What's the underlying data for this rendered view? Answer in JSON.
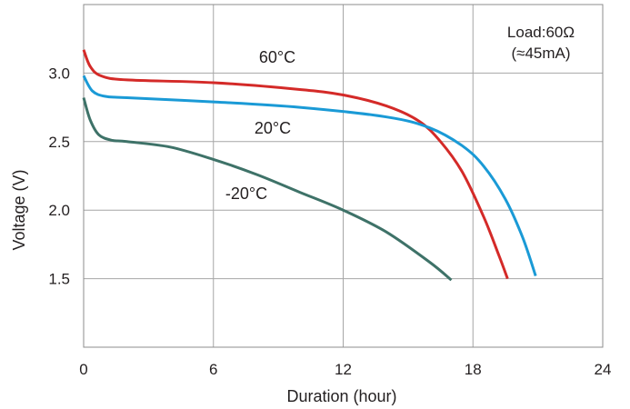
{
  "chart_data": {
    "type": "line",
    "title": "",
    "xlabel": "Duration (hour)",
    "ylabel": "Voltage (V)",
    "xlim": [
      0,
      24
    ],
    "ylim": [
      1.0,
      3.5
    ],
    "xticks": [
      0,
      6,
      12,
      18,
      24
    ],
    "xtick_labels": [
      "0",
      "6",
      "12",
      "18",
      "24"
    ],
    "yticks": [
      1.5,
      2.0,
      2.5,
      3.0
    ],
    "ytick_labels": [
      "1.5",
      "2.0",
      "2.5",
      "3.0"
    ],
    "grid": true,
    "annotation": {
      "line1": "Load:60Ω",
      "line2": "(≈45mA)"
    },
    "series": [
      {
        "name": "60°C",
        "color": "#d42a28",
        "x": [
          0,
          0.3,
          0.8,
          2,
          6,
          10,
          12,
          14,
          15.5,
          16.5,
          17.5,
          18.5,
          19.2,
          19.6
        ],
        "y": [
          3.17,
          3.05,
          2.98,
          2.95,
          2.93,
          2.88,
          2.84,
          2.76,
          2.65,
          2.5,
          2.28,
          1.95,
          1.67,
          1.5
        ]
      },
      {
        "name": "20°C",
        "color": "#1a9ad6",
        "x": [
          0,
          0.4,
          1,
          2,
          6,
          10,
          14,
          16,
          17.5,
          18.5,
          19.5,
          20.3,
          20.9
        ],
        "y": [
          2.98,
          2.87,
          2.83,
          2.82,
          2.79,
          2.75,
          2.68,
          2.6,
          2.47,
          2.32,
          2.08,
          1.8,
          1.52
        ]
      },
      {
        "name": "-20°C",
        "color": "#3e7268",
        "x": [
          0,
          0.3,
          0.7,
          1.3,
          2,
          4,
          6,
          8,
          10,
          12,
          14,
          16,
          17
        ],
        "y": [
          2.82,
          2.66,
          2.55,
          2.51,
          2.5,
          2.46,
          2.37,
          2.26,
          2.13,
          2.0,
          1.84,
          1.62,
          1.49
        ]
      }
    ]
  }
}
